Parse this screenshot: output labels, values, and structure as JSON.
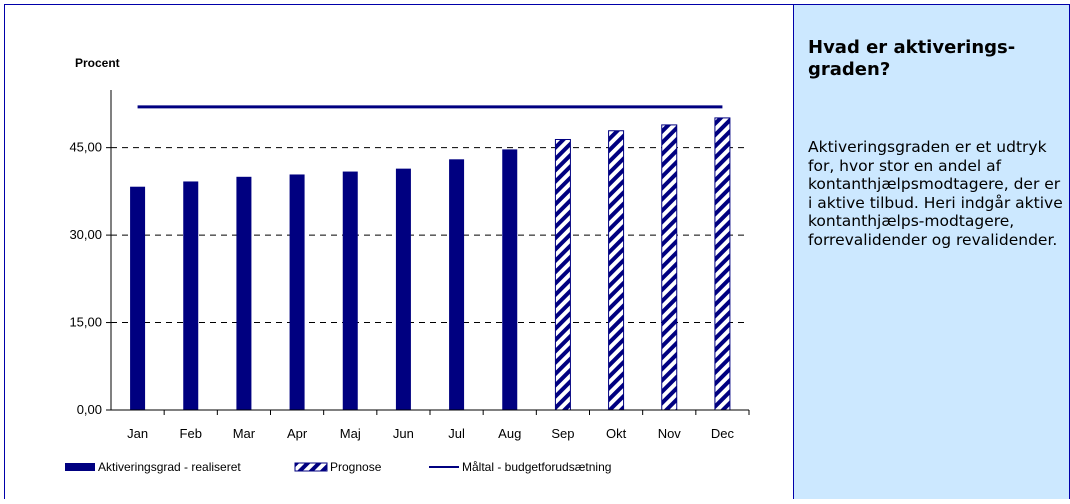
{
  "chart_data": {
    "type": "bar",
    "ylabel": "Procent",
    "ylim": [
      0,
      54
    ],
    "yticks": [
      "0,00",
      "15,00",
      "30,00",
      "45,00"
    ],
    "ytick_values": [
      0,
      15,
      30,
      45
    ],
    "grid": "horizontal dashed",
    "legend_position": "bottom",
    "categories": [
      "Jan",
      "Feb",
      "Mar",
      "Apr",
      "Maj",
      "Jun",
      "Jul",
      "Aug",
      "Sep",
      "Okt",
      "Nov",
      "Dec"
    ],
    "series": [
      {
        "name": "Aktiveringsgrad - realiseret",
        "kind": "bar-solid",
        "values": [
          38.3,
          39.2,
          40.0,
          40.4,
          40.9,
          41.4,
          43.0,
          44.7,
          null,
          null,
          null,
          null
        ]
      },
      {
        "name": "Prognose",
        "kind": "bar-hatched",
        "values": [
          null,
          null,
          null,
          null,
          null,
          null,
          null,
          null,
          46.4,
          47.9,
          48.9,
          50.1
        ]
      },
      {
        "name": "Måltal - budgetforudsætning",
        "kind": "line",
        "values": [
          52.0,
          52.0,
          52.0,
          52.0,
          52.0,
          52.0,
          52.0,
          52.0,
          52.0,
          52.0,
          52.0,
          52.0
        ]
      }
    ],
    "colors": {
      "bar": "#000080",
      "line": "#000080",
      "grid": "#000000"
    }
  },
  "sidebar": {
    "title": "Hvad er aktiverings-graden?",
    "body": "Aktiveringsgraden er et udtryk for, hvor stor en andel af kontanthjælpsmodtagere, der er i aktive tilbud. Heri indgår aktive kontanthjælps-modtagere, forrevalidender og revalidender."
  }
}
